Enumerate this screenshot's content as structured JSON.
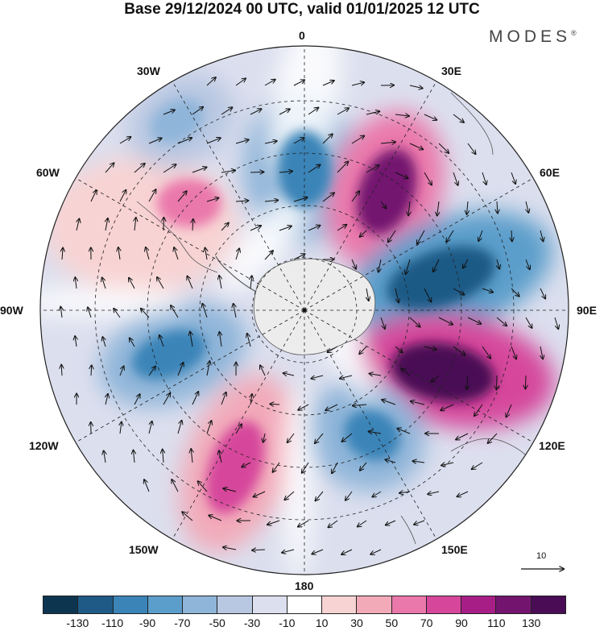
{
  "title": "Base 29/12/2024 00 UTC, valid 01/01/2025 12 UTC",
  "brand": {
    "text": "MODES",
    "mark": "®"
  },
  "longitude_labels": {
    "lon_0": "0",
    "lon_30e": "30E",
    "lon_60e": "60E",
    "lon_90e": "90E",
    "lon_120e": "120E",
    "lon_150e": "150E",
    "lon_180": "180",
    "lon_150w": "150W",
    "lon_120w": "120W",
    "lon_90w": "90W",
    "lon_60w": "60W",
    "lon_30w": "30W"
  },
  "projection": "south-polar-stereographic",
  "reference_vector": {
    "label": "10"
  },
  "colorbar": {
    "ticks": [
      "-130",
      "-110",
      "-90",
      "-70",
      "-50",
      "-30",
      "-10",
      "10",
      "30",
      "50",
      "70",
      "90",
      "110",
      "130"
    ],
    "colors": [
      "#0d3550",
      "#1f5a86",
      "#3b84b8",
      "#5c9ecb",
      "#8fb5d9",
      "#b9c8e2",
      "#dcdfee",
      "#ffffff",
      "#f8d3d3",
      "#f2aab9",
      "#ea78ab",
      "#d6469b",
      "#a81e87",
      "#73156f",
      "#4a0c55"
    ]
  },
  "anomaly_centers": [
    {
      "id": "neg-0",
      "value": -70,
      "color": "#3b84b8"
    },
    {
      "id": "pos-30e",
      "value": 130,
      "color": "#73156f"
    },
    {
      "id": "neg-75e",
      "value": -130,
      "color": "#1f5a86"
    },
    {
      "id": "pos-105e",
      "value": 130,
      "color": "#4a0c55"
    },
    {
      "id": "neg-140e",
      "value": -90,
      "color": "#3b84b8"
    },
    {
      "id": "pos-165w",
      "value": 90,
      "color": "#d6469b"
    },
    {
      "id": "neg-110w",
      "value": -90,
      "color": "#3b84b8"
    },
    {
      "id": "pos-65w",
      "value": 70,
      "color": "#ea78ab"
    },
    {
      "id": "neg-20w",
      "value": -50,
      "color": "#8fb5d9"
    }
  ],
  "colors": {
    "land": "#ececec",
    "coast": "#555555",
    "grid": "#222222",
    "arrows": "#111111"
  }
}
